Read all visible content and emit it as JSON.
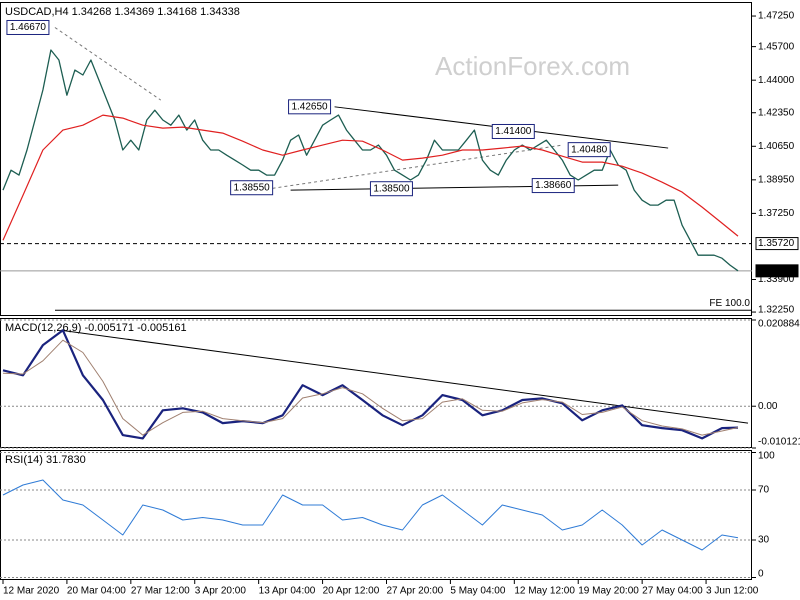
{
  "chart_data": [
    {
      "type": "line",
      "title": "USDCAD,H4  1.34268 1.34369 1.34168 1.34338",
      "watermark": "ActionForex.com",
      "xlim": [
        -1.5,
        375
      ],
      "ylim": [
        1.3205,
        1.4786
      ],
      "grid": false,
      "yticks": [
        {
          "value": 1.4725,
          "label": "1.47250"
        },
        {
          "value": 1.457,
          "label": "1.45700"
        },
        {
          "value": 1.44,
          "label": "1.44000"
        },
        {
          "value": 1.4235,
          "label": "1.42350"
        },
        {
          "value": 1.4065,
          "label": "1.40650"
        },
        {
          "value": 1.3895,
          "label": "1.38950"
        },
        {
          "value": 1.3725,
          "label": "1.37250"
        },
        {
          "value": 1.339,
          "label": "1.33900"
        },
        {
          "value": 1.3225,
          "label": "1.32250"
        }
      ],
      "series": [
        {
          "name": "USDCAD",
          "color": "#1d5e52",
          "width": 1.3,
          "x": [
            0,
            4,
            8,
            12,
            16,
            20,
            24,
            28,
            32,
            36,
            40,
            44,
            48,
            52,
            56,
            60,
            64,
            68,
            72,
            76,
            80,
            84,
            88,
            92,
            96,
            100,
            104,
            108,
            112,
            116,
            120,
            124,
            128,
            132,
            136,
            140,
            144,
            148,
            152,
            156,
            160,
            164,
            168,
            172,
            176,
            180,
            184,
            188,
            192,
            196,
            200,
            204,
            208,
            212,
            216,
            220,
            224,
            228,
            232,
            236,
            240,
            244,
            248,
            252,
            256,
            260,
            264,
            268,
            272,
            276,
            280,
            284,
            288,
            292,
            296,
            300,
            304,
            308,
            312,
            316,
            320,
            324,
            328,
            332,
            336,
            340,
            344,
            348,
            352,
            356,
            360,
            364,
            368
          ],
          "values": [
            1.3843,
            1.3944,
            1.3919,
            1.4046,
            1.4198,
            1.435,
            1.4553,
            1.4502,
            1.4324,
            1.4451,
            1.4426,
            1.4502,
            1.4401,
            1.4299,
            1.4198,
            1.4046,
            1.4096,
            1.4046,
            1.4198,
            1.4248,
            1.4198,
            1.4172,
            1.4223,
            1.4147,
            1.4198,
            1.4096,
            1.4046,
            1.4046,
            1.402,
            1.3995,
            1.397,
            1.3944,
            1.3944,
            1.3919,
            1.3919,
            1.3995,
            1.4096,
            1.4122,
            1.402,
            1.4096,
            1.4172,
            1.4198,
            1.4223,
            1.4147,
            1.4096,
            1.4046,
            1.4046,
            1.4071,
            1.402,
            1.3944,
            1.3919,
            1.3894,
            1.3919,
            1.3995,
            1.4096,
            1.4046,
            1.4046,
            1.4046,
            1.4096,
            1.4147,
            1.3995,
            1.3944,
            1.3919,
            1.3995,
            1.4046,
            1.4071,
            1.4046,
            1.4071,
            1.4096,
            1.4046,
            1.3995,
            1.3919,
            1.3894,
            1.3919,
            1.3944,
            1.3944,
            1.4046,
            1.397,
            1.3944,
            1.3843,
            1.3792,
            1.3767,
            1.3767,
            1.3792,
            1.3792,
            1.3665,
            1.3589,
            1.3513,
            1.3513,
            1.3513,
            1.3498,
            1.3463,
            1.34338
          ]
        },
        {
          "name": "MA",
          "color": "#e02020",
          "width": 1.2,
          "x": [
            0,
            10,
            20,
            30,
            40,
            50,
            60,
            70,
            80,
            90,
            100,
            110,
            120,
            130,
            140,
            150,
            160,
            170,
            180,
            190,
            200,
            210,
            220,
            230,
            240,
            250,
            260,
            270,
            280,
            290,
            300,
            310,
            320,
            330,
            340,
            350,
            360,
            368
          ],
          "values": [
            1.3589,
            1.3817,
            1.4046,
            1.4147,
            1.4172,
            1.4223,
            1.4208,
            1.4172,
            1.4157,
            1.4162,
            1.4147,
            1.4132,
            1.4091,
            1.4046,
            1.402,
            1.4046,
            1.4071,
            1.4096,
            1.4091,
            1.4046,
            1.3995,
            1.4005,
            1.402,
            1.4046,
            1.4046,
            1.4056,
            1.4066,
            1.4046,
            1.4015,
            1.3985,
            1.3985,
            1.3964,
            1.3929,
            1.3883,
            1.3833,
            1.3757,
            1.3676,
            1.361
          ]
        }
      ],
      "levels": [
        {
          "label": "1.35720",
          "value": 1.3572,
          "style": "dashed"
        },
        {
          "label": "1.34338",
          "value": 1.34338,
          "style": "current"
        },
        {
          "label": "FE 100.0",
          "value": 1.3234,
          "style": "solid"
        }
      ],
      "lines": [
        {
          "x": [
            166,
            333
          ],
          "y": [
            1.4265,
            1.4056
          ],
          "style": "solid"
        },
        {
          "x": [
            144,
            308
          ],
          "y": [
            1.3843,
            1.3868
          ],
          "style": "solid"
        },
        {
          "x": [
            26,
            79
          ],
          "y": [
            1.4667,
            1.4299
          ],
          "style": "dashed"
        },
        {
          "x": [
            129,
            280
          ],
          "y": [
            1.3843,
            1.4071
          ],
          "style": "dashed"
        }
      ],
      "annotations": [
        {
          "label": "1.46670",
          "value": 1.4667,
          "x": 25
        },
        {
          "label": "1.42650",
          "value": 1.4265,
          "x": 166
        },
        {
          "label": "1.38550",
          "value": 1.3855,
          "x": 137
        },
        {
          "label": "1.38500",
          "value": 1.385,
          "x": 207
        },
        {
          "label": "1.41400",
          "value": 1.414,
          "x": 268
        },
        {
          "label": "1.40480",
          "value": 1.4048,
          "x": 306
        },
        {
          "label": "1.38660",
          "value": 1.3866,
          "x": 288
        }
      ]
    },
    {
      "type": "line",
      "title": "MACD(12,26,9) -0.005171 -0.005161",
      "xlim": [
        -1.5,
        375
      ],
      "ylim": [
        -0.010121,
        0.020884
      ],
      "grid": true,
      "yticks": [
        0.020884,
        {
          "value": 0,
          "label": "0.00"
        },
        -0.010121
      ],
      "series": [
        {
          "name": "MACD",
          "color": "#1a237e",
          "width": 2.2,
          "x": [
            0,
            10,
            20,
            30,
            40,
            50,
            60,
            70,
            80,
            90,
            100,
            110,
            120,
            130,
            140,
            150,
            160,
            170,
            180,
            190,
            200,
            210,
            220,
            230,
            240,
            250,
            260,
            270,
            280,
            290,
            300,
            310,
            320,
            330,
            340,
            350,
            360,
            368
          ],
          "values": [
            0.0087,
            0.0075,
            0.0148,
            0.0184,
            0.0075,
            0.0015,
            -0.007,
            -0.0078,
            -0.001,
            -0.0005,
            -0.0015,
            -0.0041,
            -0.0036,
            -0.0041,
            -0.0022,
            0.0051,
            0.0027,
            0.0051,
            0.0015,
            -0.0022,
            -0.0046,
            -0.0022,
            0.0027,
            0.0015,
            -0.0022,
            -0.001,
            0.0015,
            0.0019,
            0.0007,
            -0.0034,
            -0.001,
            0.0002,
            -0.0046,
            -0.0053,
            -0.0058,
            -0.0078,
            -0.0053,
            -0.005171
          ]
        },
        {
          "name": "Signal",
          "color": "#a08070",
          "width": 1,
          "x": [
            0,
            10,
            20,
            30,
            40,
            50,
            60,
            70,
            80,
            90,
            100,
            110,
            120,
            130,
            140,
            150,
            160,
            170,
            180,
            190,
            200,
            210,
            220,
            230,
            240,
            250,
            260,
            270,
            280,
            290,
            300,
            310,
            320,
            330,
            340,
            350,
            360,
            368
          ],
          "values": [
            0.008,
            0.0078,
            0.011,
            0.016,
            0.013,
            0.006,
            -0.003,
            -0.007,
            -0.004,
            -0.0015,
            -0.0012,
            -0.003,
            -0.0035,
            -0.004,
            -0.003,
            0.002,
            0.003,
            0.0045,
            0.003,
            -0.0005,
            -0.0035,
            -0.003,
            0.001,
            0.0018,
            -0.001,
            -0.0012,
            0.0008,
            0.0016,
            0.001,
            -0.002,
            -0.0015,
            -0.0002,
            -0.0035,
            -0.0048,
            -0.0055,
            -0.007,
            -0.006,
            -0.005161
          ]
        }
      ],
      "lines": [
        {
          "x": [
            29,
            373
          ],
          "y": [
            0.0184,
            -0.0041
          ],
          "style": "solid"
        }
      ]
    },
    {
      "type": "line",
      "title": "RSI(14) 31.7830",
      "xlim": [
        -1.5,
        375
      ],
      "ylim": [
        0,
        100
      ],
      "grid": true,
      "yticks": [
        100,
        70,
        30,
        0
      ],
      "xticks": [
        {
          "value": 0,
          "label": "12 Mar 2020"
        },
        {
          "value": 32,
          "label": "20 Mar 04:00"
        },
        {
          "value": 64,
          "label": "27 Mar 12:00"
        },
        {
          "value": 96,
          "label": "3 Apr 20:00"
        },
        {
          "value": 128,
          "label": "13 Apr 04:00"
        },
        {
          "value": 160,
          "label": "20 Apr 12:00"
        },
        {
          "value": 192,
          "label": "27 Apr 20:00"
        },
        {
          "value": 224,
          "label": "5 May 04:00"
        },
        {
          "value": 256,
          "label": "12 May 12:00"
        },
        {
          "value": 288,
          "label": "19 May 20:00"
        },
        {
          "value": 320,
          "label": "27 May 04:00"
        },
        {
          "value": 352,
          "label": "3 Jun 12:00"
        }
      ],
      "series": [
        {
          "name": "RSI",
          "color": "#2f7bd6",
          "width": 1,
          "x": [
            0,
            10,
            20,
            30,
            40,
            50,
            60,
            70,
            80,
            90,
            100,
            110,
            120,
            130,
            140,
            150,
            160,
            170,
            180,
            190,
            200,
            210,
            220,
            230,
            240,
            250,
            260,
            270,
            280,
            290,
            300,
            310,
            320,
            330,
            340,
            350,
            360,
            368
          ],
          "values": [
            66,
            74,
            78,
            62,
            58,
            46,
            34,
            58,
            54,
            46,
            48,
            46,
            42,
            42,
            66,
            58,
            58,
            46,
            48,
            42,
            38,
            58,
            66,
            54,
            42,
            58,
            54,
            50,
            38,
            42,
            54,
            42,
            26,
            38,
            30,
            22,
            34,
            31.783
          ]
        }
      ]
    }
  ]
}
